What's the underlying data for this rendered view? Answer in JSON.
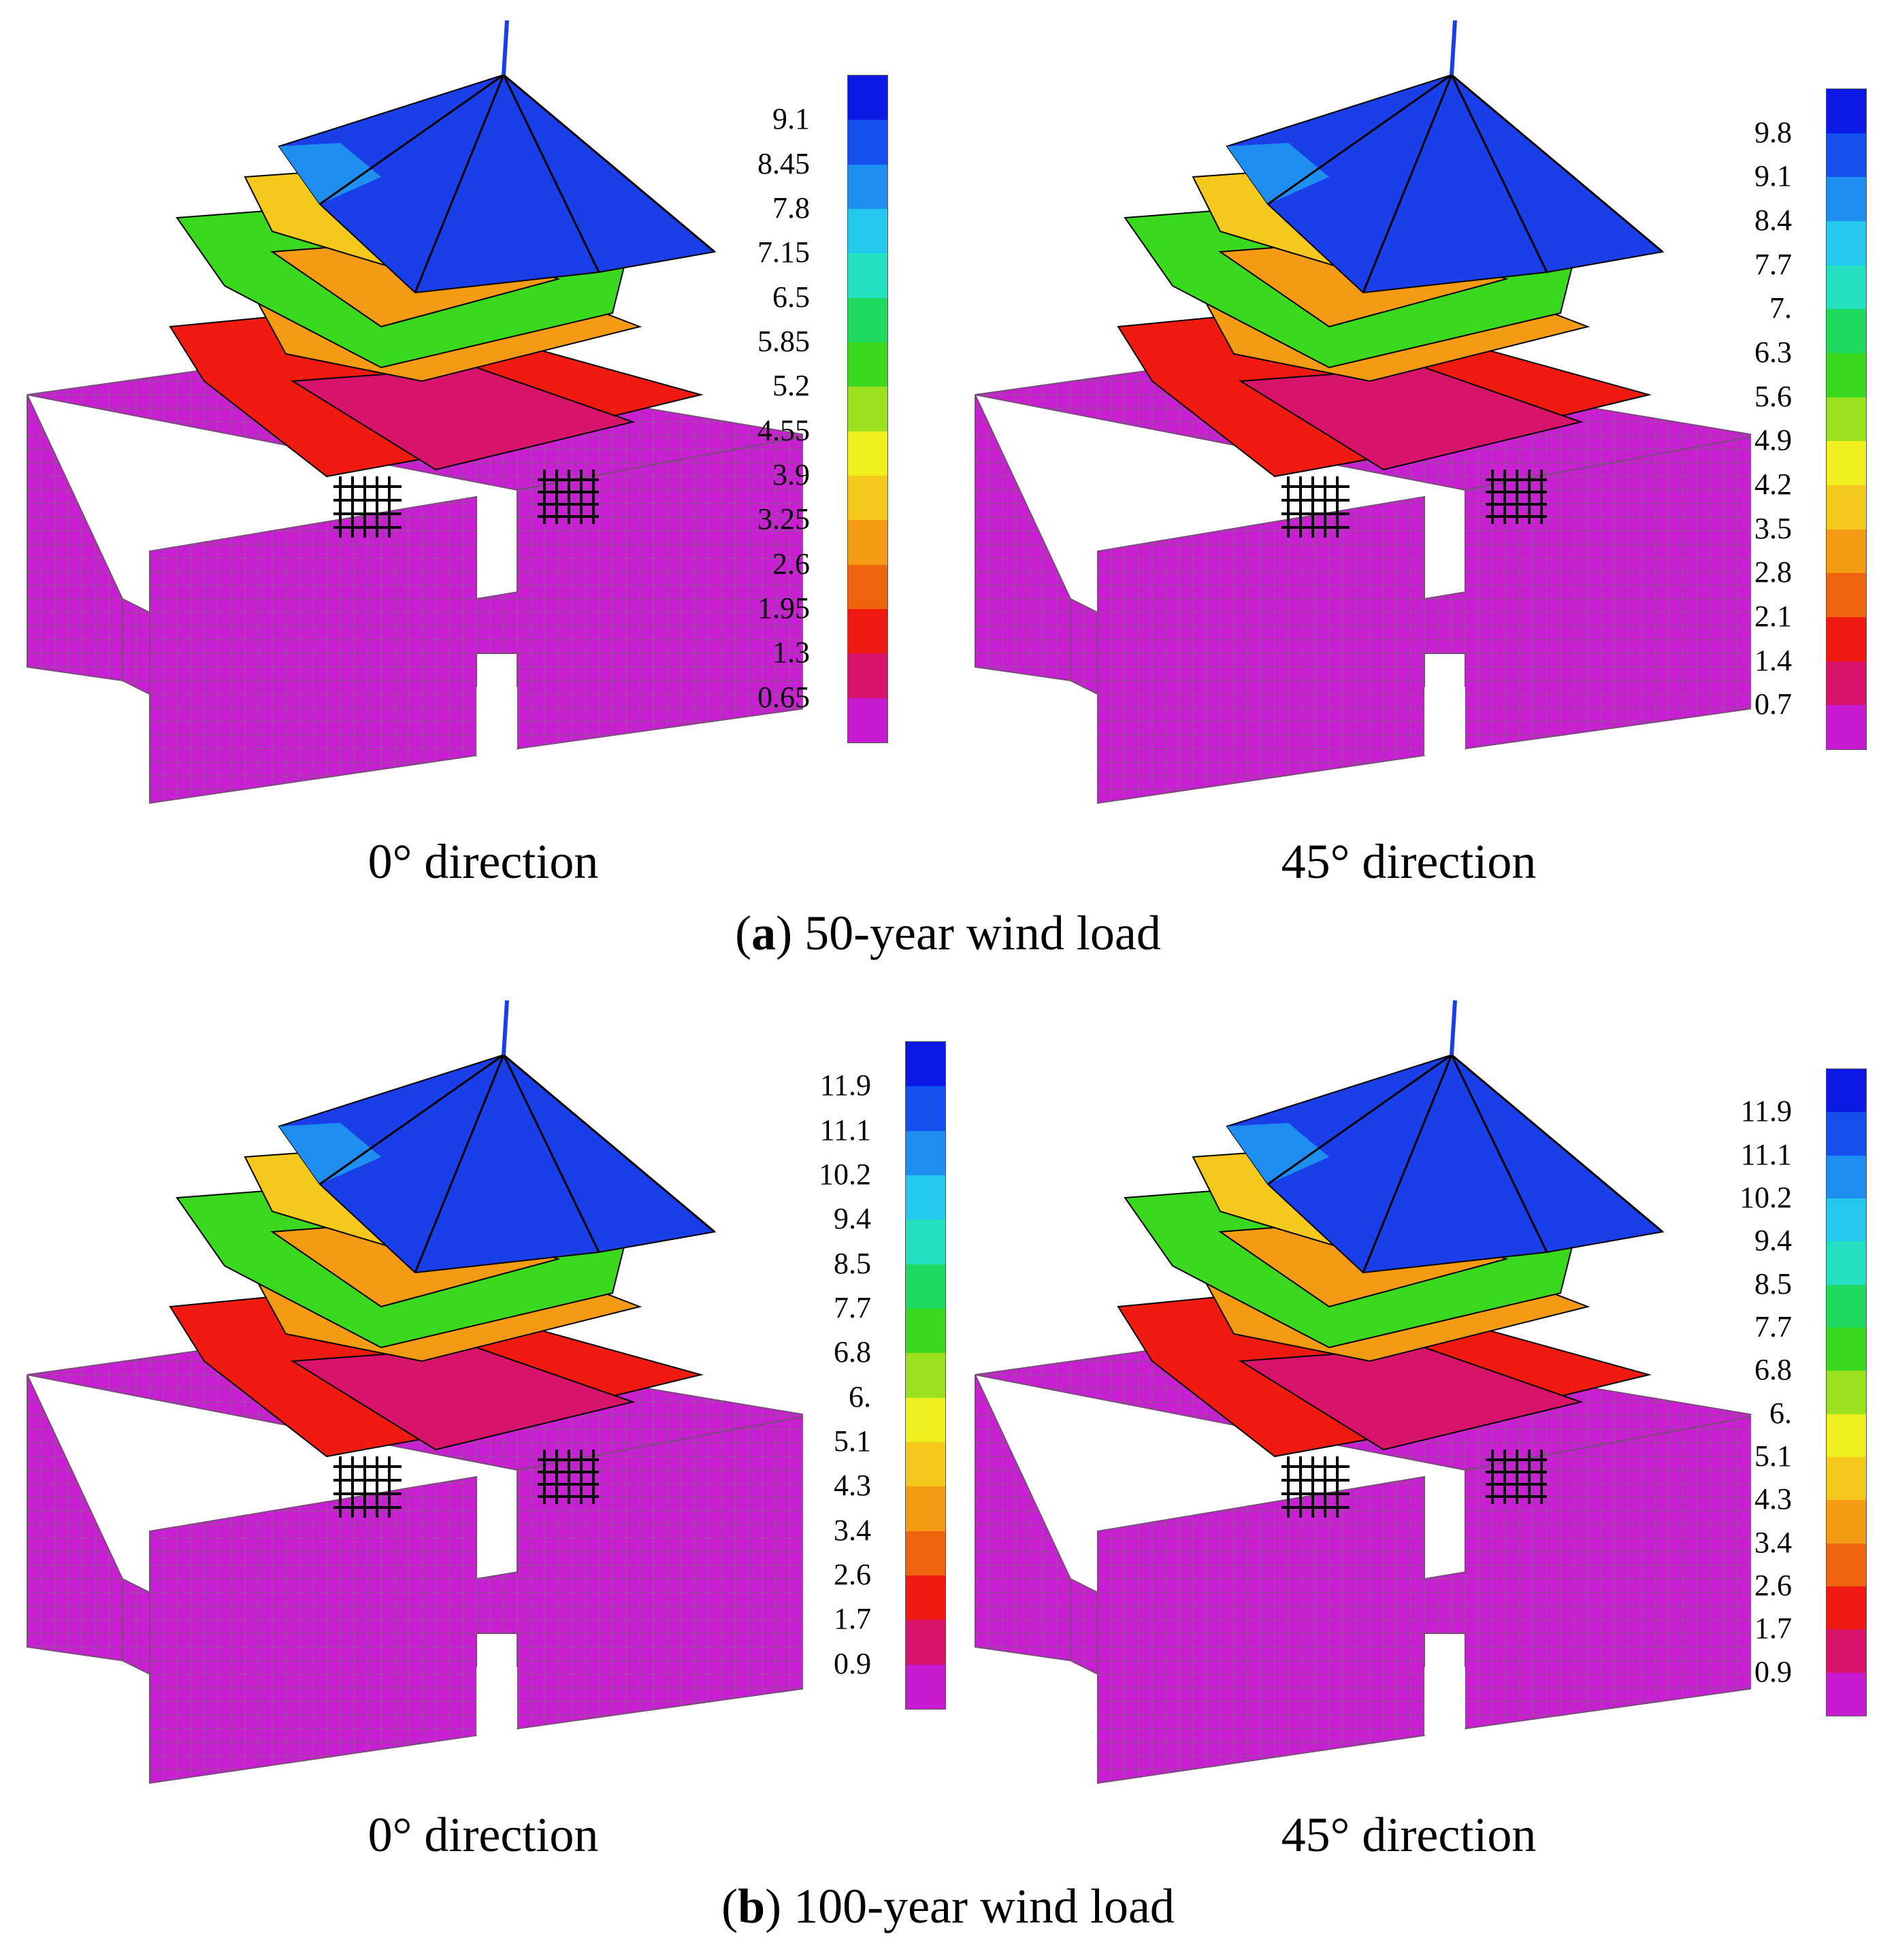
{
  "panels": [
    {
      "direction": "0° direction",
      "legend": [
        "9.1",
        "8.45",
        "7.8",
        "7.15",
        "6.5",
        "5.85",
        "5.2",
        "4.55",
        "3.9",
        "3.25",
        "2.6",
        "1.95",
        "1.3",
        "0.65"
      ]
    },
    {
      "direction": "45° direction",
      "legend": [
        "9.8",
        "9.1",
        "8.4",
        "7.7",
        "7.",
        "6.3",
        "5.6",
        "4.9",
        "4.2",
        "3.5",
        "2.8",
        "2.1",
        "1.4",
        "0.7"
      ]
    },
    {
      "direction": "0° direction",
      "legend": [
        "11.9",
        "11.1",
        "10.2",
        "9.4",
        "8.5",
        "7.7",
        "6.8",
        "6.",
        "5.1",
        "4.3",
        "3.4",
        "2.6",
        "1.7",
        "0.9"
      ]
    },
    {
      "direction": "45° direction",
      "legend": [
        "11.9",
        "11.1",
        "10.2",
        "9.4",
        "8.5",
        "7.7",
        "6.8",
        "6.",
        "5.1",
        "4.3",
        "3.4",
        "2.6",
        "1.7",
        "0.9"
      ]
    }
  ],
  "captions": {
    "a": {
      "letter": "a",
      "text": " 50-year wind load"
    },
    "b": {
      "letter": "b",
      "text": " 100-year wind load"
    }
  },
  "colors": {
    "scale": [
      "#0b18e6",
      "#1450f0",
      "#1e8ef0",
      "#23c8ee",
      "#22e0c0",
      "#1fd860",
      "#3ad81e",
      "#9be01e",
      "#f0f01e",
      "#f5c81e",
      "#f59a14",
      "#f0640f",
      "#f01a10",
      "#d8146a",
      "#c81ad0"
    ],
    "base": "#c91fd3",
    "roof": "#1a3fe8"
  }
}
